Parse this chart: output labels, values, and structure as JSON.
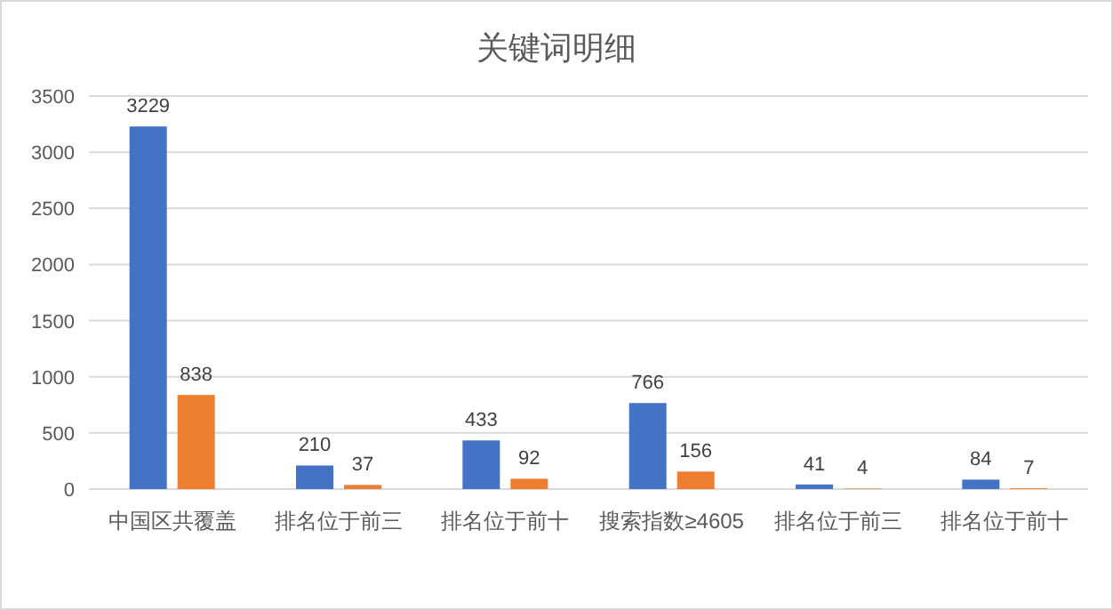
{
  "chart_data": {
    "type": "bar",
    "title": "关键词明细",
    "categories": [
      "中国区共覆盖",
      "排名位于前三",
      "排名位于前十",
      "搜索指数≥4605",
      "排名位于前三",
      "排名位于前十"
    ],
    "series": [
      {
        "color": "#4472c4",
        "values": [
          3229,
          210,
          433,
          766,
          41,
          84
        ]
      },
      {
        "color": "#ed7d31",
        "values": [
          838,
          37,
          92,
          156,
          4,
          7
        ]
      }
    ],
    "ylim": [
      0,
      3500
    ],
    "yticks": [
      0,
      500,
      1000,
      1500,
      2000,
      2500,
      3000,
      3500
    ],
    "grid": "y",
    "data_labels": true
  }
}
